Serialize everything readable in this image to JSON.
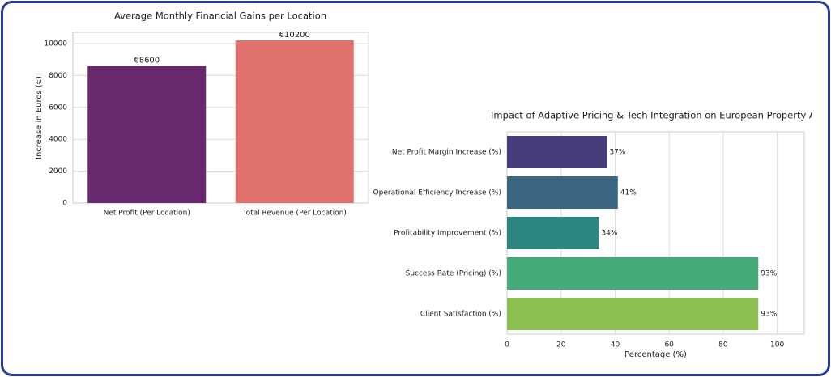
{
  "chart_data": [
    {
      "type": "bar",
      "title": "Average Monthly Financial Gains per Location",
      "ylabel": "Increase in Euros (€)",
      "categories": [
        "Net Profit (Per Location)",
        "Total Revenue (Per Location)"
      ],
      "values": [
        8600,
        10200
      ],
      "value_labels": [
        "€8600",
        "€10200"
      ],
      "colors": [
        "#68296f",
        "#e0706c"
      ],
      "ylim": [
        0,
        10710
      ],
      "yticks": [
        0,
        2000,
        4000,
        6000,
        8000,
        10000
      ],
      "grid": true
    },
    {
      "type": "barh",
      "title": "Impact of Adaptive Pricing & Tech Integration on European Property Agencies",
      "xlabel": "Percentage (%)",
      "categories": [
        "Net Profit Margin Increase (%)",
        "Operational Efficiency Increase (%)",
        "Profitability Improvement (%)",
        "Success Rate (Pricing) (%)",
        "Client Satisfaction (%)"
      ],
      "values": [
        37,
        41,
        34,
        93,
        93
      ],
      "value_labels": [
        "37%",
        "41%",
        "34%",
        "93%",
        "93%"
      ],
      "colors": [
        "#483d7b",
        "#3b6782",
        "#2e8680",
        "#45aa78",
        "#8cc152"
      ],
      "xlim": [
        0,
        110
      ],
      "xticks": [
        0,
        20,
        40,
        60,
        80,
        100
      ],
      "grid": true
    }
  ]
}
